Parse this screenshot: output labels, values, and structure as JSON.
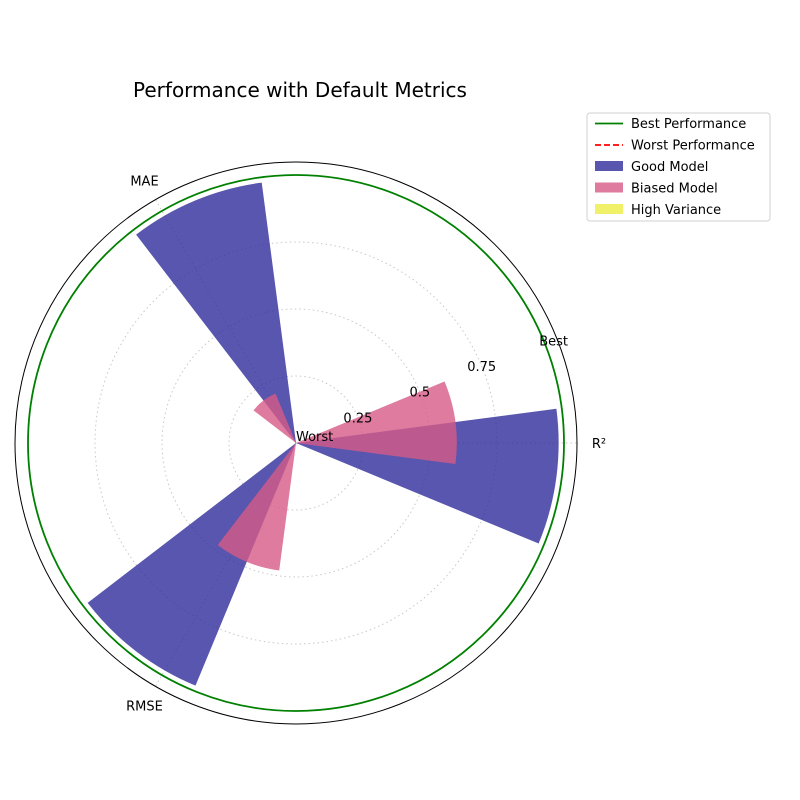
{
  "chart_data": {
    "type": "polar-bar",
    "title": "Performance with Default Metrics",
    "axes": [
      {
        "label": "R²",
        "angle_deg": 0
      },
      {
        "label": "MAE",
        "angle_deg": 120
      },
      {
        "label": "RMSE",
        "angle_deg": 240
      }
    ],
    "radial_ticks": [
      0.25,
      0.5,
      0.75
    ],
    "radial_tick_labels": [
      "0.25",
      "0.5",
      "0.75"
    ],
    "radial_range": [
      0,
      1
    ],
    "radial_end_labels": {
      "min": "Worst",
      "max": "Best"
    },
    "bar_width_deg": 30,
    "grid": true,
    "legend_position": "upper-right-outside",
    "reference_lines": [
      {
        "name": "Best Performance",
        "value": 1.0,
        "color": "#008000",
        "style": "solid"
      },
      {
        "name": "Worst Performance",
        "value": 0.0,
        "color": "#ff0000",
        "style": "dashed"
      }
    ],
    "series": [
      {
        "name": "Good Model",
        "color": "#2e2c9a",
        "opacity": 0.8,
        "offset_deg": -7.5,
        "values": [
          0.98,
          0.98,
          0.98
        ]
      },
      {
        "name": "Biased Model",
        "color": "#d65a87",
        "opacity": 0.8,
        "offset_deg": 7.5,
        "values": [
          0.6,
          0.2,
          0.48
        ]
      },
      {
        "name": "High Variance",
        "color": "#eeee44",
        "opacity": 0.8,
        "offset_deg": 22.5,
        "values": [
          0,
          0,
          0
        ]
      }
    ]
  }
}
